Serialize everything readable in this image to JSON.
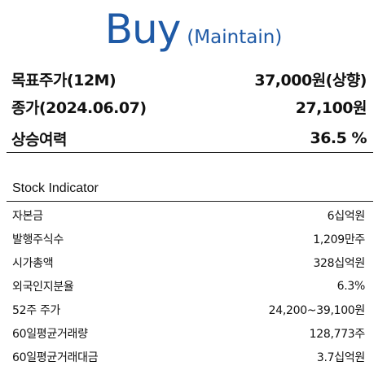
{
  "rating": {
    "main": "Buy",
    "sub": "(Maintain)"
  },
  "summary": [
    {
      "label": "목표주가(12M)",
      "value": "37,000원(상향)"
    },
    {
      "label": "종가(2024.06.07)",
      "value": "27,100원"
    },
    {
      "label": "상승여력",
      "value": "36.5 %"
    }
  ],
  "indicator": {
    "title": "Stock Indicator",
    "rows": [
      {
        "label": "자본금",
        "value": "6십억원"
      },
      {
        "label": "발행주식수",
        "value": "1,209만주"
      },
      {
        "label": "시가총액",
        "value": "328십억원"
      },
      {
        "label": "외국인지분율",
        "value": "6.3%"
      },
      {
        "label": "52주 주가",
        "value": "24,200~39,100원"
      },
      {
        "label": "60일평균거래량",
        "value": "128,773주"
      },
      {
        "label": "60일평균거래대금",
        "value": "3.7십억원"
      }
    ]
  },
  "colors": {
    "accent": "#1f5aa6",
    "text": "#111111",
    "rule": "#222222"
  }
}
